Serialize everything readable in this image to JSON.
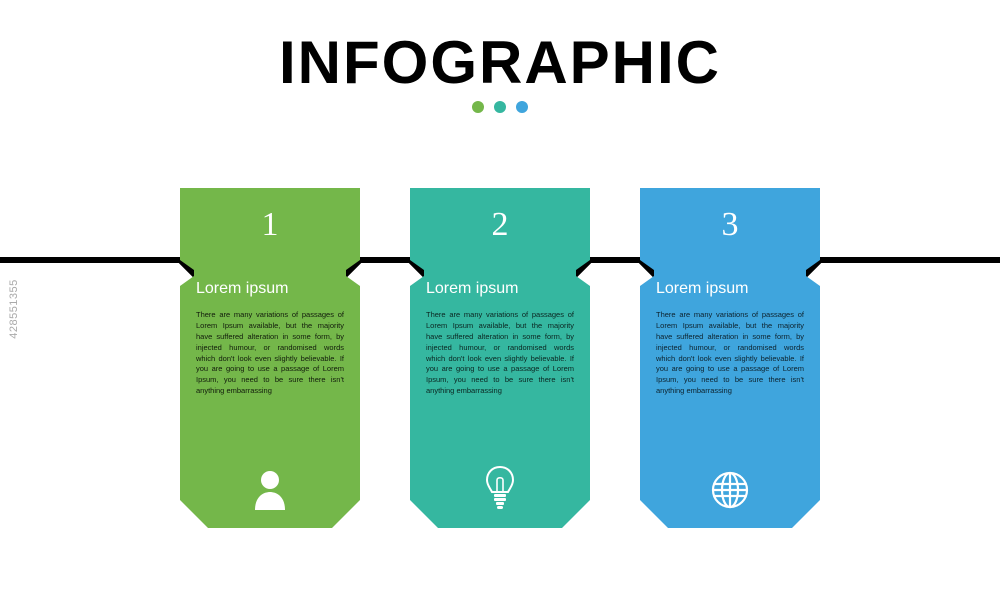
{
  "type": "infographic",
  "background_color": "#ffffff",
  "title": {
    "text": "INFOGRAPHIC",
    "color": "#000000",
    "fontsize": 60,
    "weight": 900
  },
  "dots": [
    {
      "color": "#74b74a"
    },
    {
      "color": "#35b7a0"
    },
    {
      "color": "#3fa5dd"
    }
  ],
  "connector": {
    "stroke": "#000000",
    "stroke_width": 6
  },
  "cards": [
    {
      "number": "1",
      "heading": "Lorem ipsum",
      "body": "There are many variations of passages of Lorem Ipsum available, but the majority have suffered alteration in some form, by injected humour, or randomised words which don't look even slightly believable. If you are going to use a passage of Lorem Ipsum, you need to be sure there isn't anything embarrassing",
      "color": "#74b74a",
      "icon": "person"
    },
    {
      "number": "2",
      "heading": "Lorem ipsum",
      "body": "There are many variations of passages of Lorem Ipsum available, but the majority have suffered alteration in some form, by injected humour, or randomised words which don't look even slightly believable. If you are going to use a passage of Lorem Ipsum, you need to be sure there isn't anything embarrassing",
      "color": "#35b7a0",
      "icon": "bulb"
    },
    {
      "number": "3",
      "heading": "Lorem ipsum",
      "body": "There are many variations of passages of Lorem Ipsum available, but the majority have suffered alteration in some form, by injected humour, or randomised words which don't look even slightly believable. If you are going to use a passage of Lorem Ipsum, you need to be sure there isn't anything embarrassing",
      "color": "#3fa5dd",
      "icon": "globe"
    }
  ],
  "watermark": "428551355"
}
